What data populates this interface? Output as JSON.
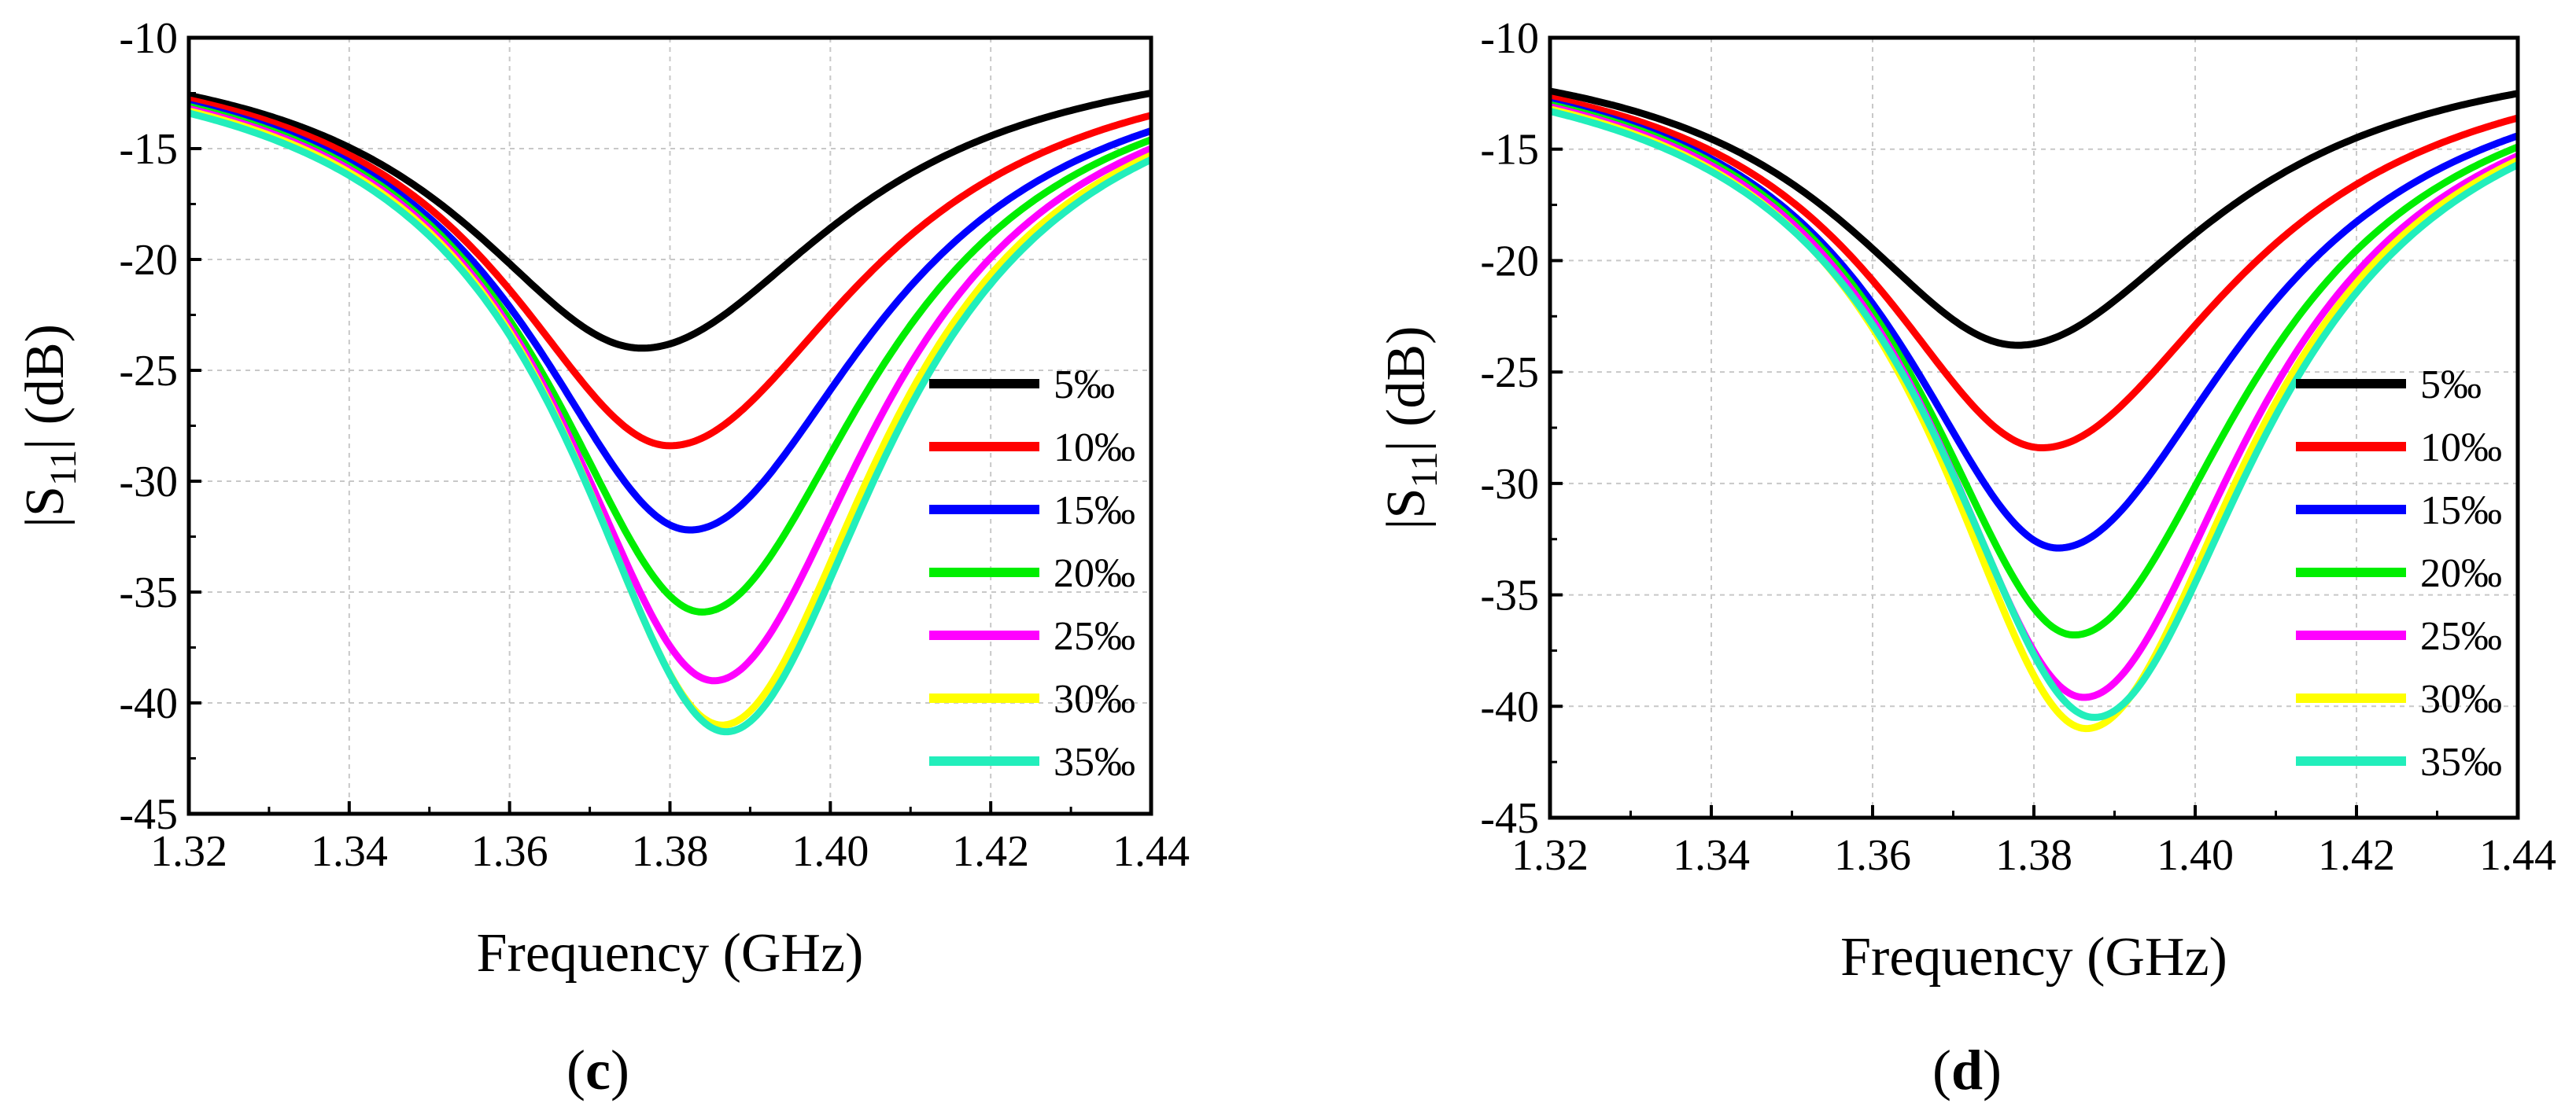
{
  "chart_data": [
    {
      "type": "line",
      "panel_label": "c",
      "xlabel": "Frequency (GHz)",
      "ylabel_prefix": "|S",
      "ylabel_subscript": "11",
      "ylabel_suffix": "| (dB)",
      "xlim": [
        1.32,
        1.44
      ],
      "ylim": [
        -45,
        -10
      ],
      "xticks": [
        "1.32",
        "1.34",
        "1.36",
        "1.38",
        "1.40",
        "1.42",
        "1.44"
      ],
      "yticks": [
        "-10",
        "-15",
        "-20",
        "-25",
        "-30",
        "-35",
        "-40",
        "-45"
      ],
      "grid": true,
      "legend_position": "lower-right",
      "series": [
        {
          "name": "5‰",
          "color": "#000000",
          "f0": 1.3765,
          "min": -24.0,
          "left": -12.6,
          "right": -12.5
        },
        {
          "name": "10‰",
          "color": "#ff0000",
          "f0": 1.38,
          "min": -28.4,
          "left": -12.8,
          "right": -13.5
        },
        {
          "name": "15‰",
          "color": "#0000ff",
          "f0": 1.3825,
          "min": -32.2,
          "left": -13.0,
          "right": -14.2
        },
        {
          "name": "20‰",
          "color": "#00ee00",
          "f0": 1.384,
          "min": -35.9,
          "left": -13.1,
          "right": -14.6
        },
        {
          "name": "25‰",
          "color": "#ff00ff",
          "f0": 1.3855,
          "min": -39.0,
          "left": -13.2,
          "right": -15.0
        },
        {
          "name": "30‰",
          "color": "#ffff00",
          "f0": 1.3865,
          "min": -41.0,
          "left": -13.3,
          "right": -15.3
        },
        {
          "name": "35‰",
          "color": "#22eebb",
          "f0": 1.387,
          "min": -41.3,
          "left": -13.4,
          "right": -15.5
        }
      ]
    },
    {
      "type": "line",
      "panel_label": "d",
      "xlabel": "Frequency (GHz)",
      "ylabel_prefix": "|S",
      "ylabel_subscript": "11",
      "ylabel_suffix": "| (dB)",
      "xlim": [
        1.32,
        1.44
      ],
      "ylim": [
        -45,
        -10
      ],
      "xticks": [
        "1.32",
        "1.34",
        "1.36",
        "1.38",
        "1.40",
        "1.42",
        "1.44"
      ],
      "yticks": [
        "-10",
        "-15",
        "-20",
        "-25",
        "-30",
        "-35",
        "-40",
        "-45"
      ],
      "grid": true,
      "legend_position": "lower-right",
      "series": [
        {
          "name": "5‰",
          "color": "#000000",
          "f0": 1.378,
          "min": -23.8,
          "left": -12.4,
          "right": -12.5
        },
        {
          "name": "10‰",
          "color": "#ff0000",
          "f0": 1.381,
          "min": -28.4,
          "left": -12.7,
          "right": -13.6
        },
        {
          "name": "15‰",
          "color": "#0000ff",
          "f0": 1.383,
          "min": -32.9,
          "left": -12.9,
          "right": -14.4
        },
        {
          "name": "20‰",
          "color": "#00ee00",
          "f0": 1.385,
          "min": -36.8,
          "left": -13.0,
          "right": -14.9
        },
        {
          "name": "25‰",
          "color": "#ff00ff",
          "f0": 1.3862,
          "min": -39.6,
          "left": -13.1,
          "right": -15.3
        },
        {
          "name": "30‰",
          "color": "#ffff00",
          "f0": 1.3865,
          "min": -41.0,
          "left": -13.2,
          "right": -15.5
        },
        {
          "name": "35‰",
          "color": "#22eebb",
          "f0": 1.3875,
          "min": -40.5,
          "left": -13.3,
          "right": -15.7
        }
      ]
    }
  ]
}
